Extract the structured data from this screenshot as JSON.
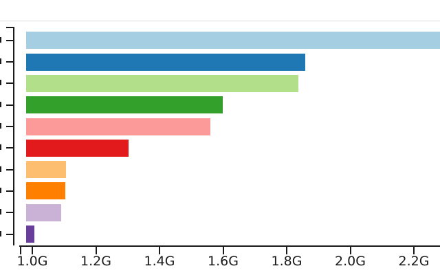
{
  "chart_data": {
    "type": "bar",
    "orientation": "horizontal",
    "title": "",
    "xlabel": "",
    "ylabel": "",
    "unit": "G",
    "x_tick_labels": [
      "1.0G",
      "1.2G",
      "1.4G",
      "1.6G",
      "1.8G",
      "2.0G",
      "2.2G"
    ],
    "x_tick_values": [
      1.0,
      1.2,
      1.4,
      1.6,
      1.8,
      2.0,
      2.2
    ],
    "x_axis_range_visible": [
      0.98,
      2.28
    ],
    "categories": [
      "",
      "",
      "",
      "",
      "",
      "",
      "",
      "",
      "",
      ""
    ],
    "y_labels_cut_off_at_left_edge": true,
    "bar_start_value": 0.98,
    "values_g": [
      2.3,
      1.859,
      1.836,
      1.598,
      1.561,
      1.302,
      1.106,
      1.103,
      1.09,
      1.006
    ],
    "first_bar_clipped_at_right_edge": true,
    "legend": null,
    "grid": false,
    "bar_colors": [
      "#a6cee3",
      "#1f78b4",
      "#b2df8a",
      "#33a02c",
      "#fb9a99",
      "#e31a1c",
      "#fdbf6f",
      "#ff7f00",
      "#cab2d6",
      "#6a3d9a"
    ]
  },
  "style": {
    "background_color": "#ffffff",
    "axis_color": "#1a1a1a",
    "tick_label_color": "#1a1a1a",
    "top_border_color": "#d9d9d9"
  }
}
